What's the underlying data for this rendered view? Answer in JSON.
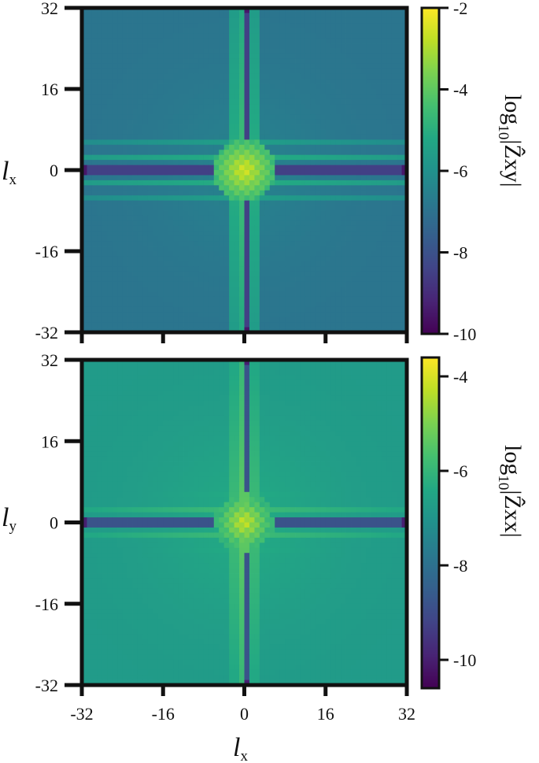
{
  "chart_data": [
    {
      "type": "heatmap",
      "colormap": "viridis",
      "x_range": [
        -32,
        32
      ],
      "y_range": [
        -32,
        32
      ],
      "x_ticks": [
        "-32",
        "-16",
        "0",
        "16",
        "32"
      ],
      "y_ticks": [
        "32",
        "16",
        "0",
        "-16",
        "-32"
      ],
      "ylabel": {
        "main": "l",
        "sub": "x"
      },
      "colorbar": {
        "label": {
          "main": "log",
          "sub": "10",
          "tail": "|Ẑxy|"
        },
        "range": [
          -10,
          -2
        ],
        "ticks": [
          "-2",
          "-4",
          "-6",
          "-8",
          "-10"
        ],
        "tick_values": [
          -2,
          -4,
          -6,
          -8,
          -10
        ]
      },
      "pattern": {
        "background_value": -6.9,
        "center_peak_value": -2.3,
        "vertical_stripe_value": -5.0,
        "horizontal_stripe_value": -5.0,
        "axis_line_value": -8.5,
        "edge_dark_value": -9.5
      }
    },
    {
      "type": "heatmap",
      "colormap": "viridis",
      "x_range": [
        -32,
        32
      ],
      "y_range": [
        -32,
        32
      ],
      "x_ticks": [
        "-32",
        "-16",
        "0",
        "16",
        "32"
      ],
      "y_ticks": [
        "32",
        "16",
        "0",
        "-16",
        "-32"
      ],
      "xlabel": {
        "main": "l",
        "sub": "x"
      },
      "ylabel": {
        "main": "l",
        "sub": "y"
      },
      "colorbar": {
        "label": {
          "main": "log",
          "sub": "10",
          "tail": "|Ẑxx|"
        },
        "range": [
          -10.6,
          -3.6
        ],
        "ticks": [
          "-4",
          "-6",
          "-8",
          "-10"
        ],
        "tick_values": [
          -4,
          -6,
          -8,
          -10
        ]
      },
      "pattern": {
        "background_value": -6.8,
        "center_peak_value": -4.0,
        "vertical_stripe_value": -5.8,
        "horizontal_stripe_value": -5.8,
        "axis_line_value": -8.8,
        "edge_dark_value": -10.0
      }
    }
  ]
}
